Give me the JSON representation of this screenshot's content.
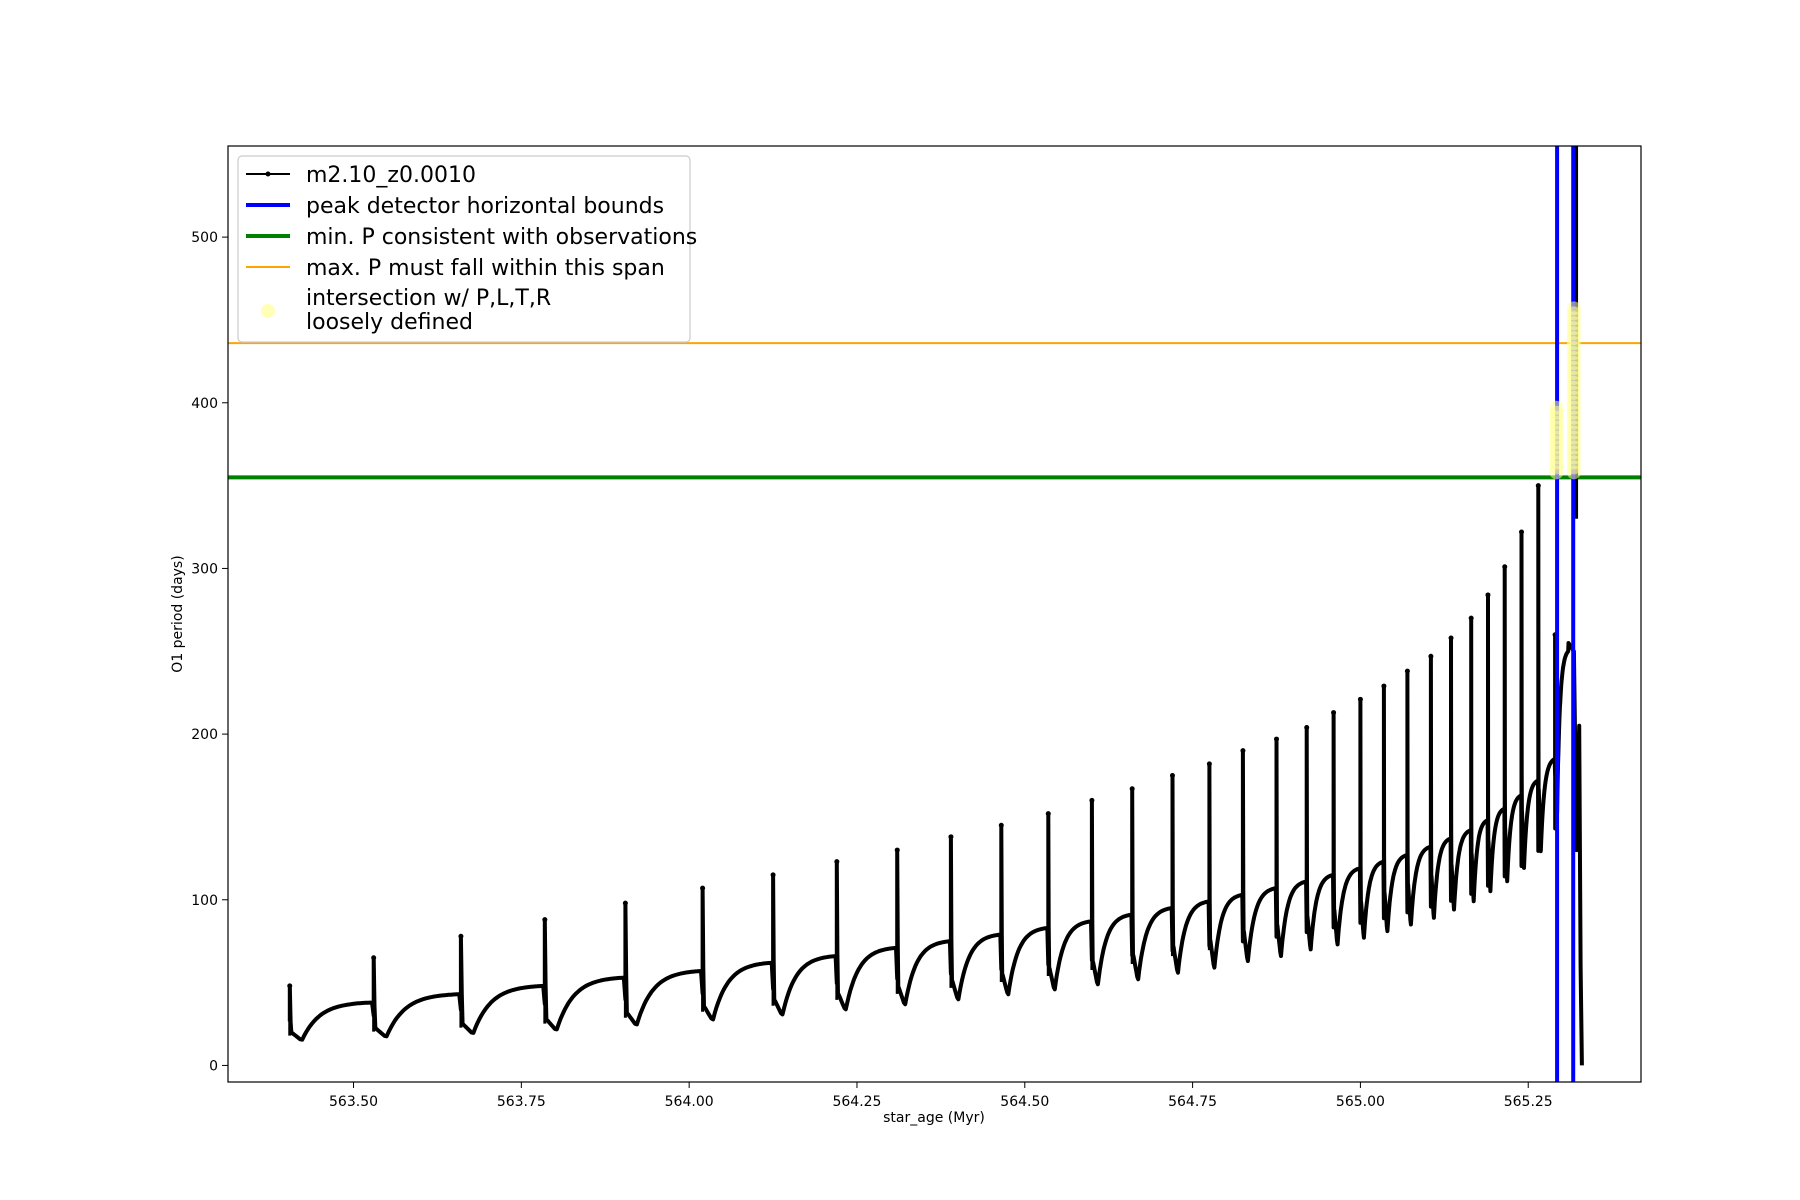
{
  "chart_data": {
    "type": "line",
    "xlabel": "star_age (Myr)",
    "ylabel": "O1 period (days)",
    "xlim": [
      563.313,
      565.418
    ],
    "ylim": [
      -10,
      555
    ],
    "xticks": [
      563.5,
      563.75,
      564.0,
      564.25,
      564.5,
      564.75,
      565.0,
      565.25
    ],
    "xtick_labels": [
      "563.50",
      "563.75",
      "564.00",
      "564.25",
      "564.50",
      "564.75",
      "565.00",
      "565.25"
    ],
    "yticks": [
      0,
      100,
      200,
      300,
      400,
      500
    ],
    "ytick_labels": [
      "0",
      "100",
      "200",
      "300",
      "400",
      "500"
    ],
    "grid": false,
    "legend_position": "top-left",
    "series": [
      {
        "name": "m2.10_z0.0010",
        "kind": "line-with-markers",
        "color": "#000000",
        "x_start": 563.405,
        "x_end": 565.33,
        "pulse_count": 31,
        "note_values": "pulse peaks rise from ~48 to ~350 days; baseline rises from ~15 to ~250 days; final drop to ~0",
        "pulses": [
          {
            "t": 563.405,
            "peak": 48,
            "trough": 15,
            "plateau": 38
          },
          {
            "t": 563.53,
            "peak": 65,
            "trough": 17,
            "plateau": 43
          },
          {
            "t": 563.66,
            "peak": 78,
            "trough": 19,
            "plateau": 48
          },
          {
            "t": 563.785,
            "peak": 88,
            "trough": 21,
            "plateau": 53
          },
          {
            "t": 563.905,
            "peak": 98,
            "trough": 24,
            "plateau": 57
          },
          {
            "t": 564.02,
            "peak": 107,
            "trough": 27,
            "plateau": 62
          },
          {
            "t": 564.125,
            "peak": 115,
            "trough": 30,
            "plateau": 66
          },
          {
            "t": 564.22,
            "peak": 123,
            "trough": 33,
            "plateau": 71
          },
          {
            "t": 564.31,
            "peak": 130,
            "trough": 36,
            "plateau": 75
          },
          {
            "t": 564.39,
            "peak": 138,
            "trough": 39,
            "plateau": 79
          },
          {
            "t": 564.465,
            "peak": 145,
            "trough": 42,
            "plateau": 83
          },
          {
            "t": 564.535,
            "peak": 152,
            "trough": 45,
            "plateau": 87
          },
          {
            "t": 564.6,
            "peak": 160,
            "trough": 48,
            "plateau": 91
          },
          {
            "t": 564.66,
            "peak": 167,
            "trough": 51,
            "plateau": 95
          },
          {
            "t": 564.72,
            "peak": 175,
            "trough": 55,
            "plateau": 99
          },
          {
            "t": 564.775,
            "peak": 182,
            "trough": 58,
            "plateau": 103
          },
          {
            "t": 564.825,
            "peak": 190,
            "trough": 62,
            "plateau": 107
          },
          {
            "t": 564.875,
            "peak": 197,
            "trough": 65,
            "plateau": 111
          },
          {
            "t": 564.92,
            "peak": 204,
            "trough": 69,
            "plateau": 115
          },
          {
            "t": 564.96,
            "peak": 213,
            "trough": 72,
            "plateau": 119
          },
          {
            "t": 565.0,
            "peak": 221,
            "trough": 76,
            "plateau": 123
          },
          {
            "t": 565.035,
            "peak": 229,
            "trough": 80,
            "plateau": 127
          },
          {
            "t": 565.07,
            "peak": 238,
            "trough": 84,
            "plateau": 132
          },
          {
            "t": 565.105,
            "peak": 247,
            "trough": 88,
            "plateau": 137
          },
          {
            "t": 565.135,
            "peak": 258,
            "trough": 93,
            "plateau": 142
          },
          {
            "t": 565.165,
            "peak": 270,
            "trough": 98,
            "plateau": 148
          },
          {
            "t": 565.19,
            "peak": 284,
            "trough": 104,
            "plateau": 155
          },
          {
            "t": 565.215,
            "peak": 301,
            "trough": 110,
            "plateau": 163
          },
          {
            "t": 565.24,
            "peak": 322,
            "trough": 118,
            "plateau": 172
          },
          {
            "t": 565.265,
            "peak": 350,
            "trough": 128,
            "plateau": 185
          },
          {
            "t": 565.29,
            "peak": 260,
            "trough": 150,
            "plateau": 250
          }
        ]
      },
      {
        "name": "peak detector horizontal bounds",
        "kind": "vline",
        "color": "#0000ff",
        "x": [
          565.293,
          565.317
        ]
      },
      {
        "name": "min. P consistent with observations",
        "kind": "hline",
        "color": "#008000",
        "y": 355
      },
      {
        "name": "max. P must fall within this span",
        "kind": "hline",
        "color": "#ffa500",
        "y": 436
      },
      {
        "name": "intersection w/ P,L,T,R\nloosely defined",
        "kind": "scatter",
        "color": "#ffff99",
        "points": [
          {
            "x": 565.292,
            "y_from": 358,
            "y_to": 398
          },
          {
            "x": 565.318,
            "y_from": 358,
            "y_to": 458
          }
        ]
      }
    ]
  },
  "legend": {
    "entries": [
      {
        "label": "m2.10_z0.0010"
      },
      {
        "label": "peak detector horizontal bounds"
      },
      {
        "label": "min. P consistent with observations"
      },
      {
        "label": "max. P must fall within this span"
      },
      {
        "label_line1": "intersection w/ P,L,T,R",
        "label_line2": "loosely defined"
      }
    ]
  }
}
